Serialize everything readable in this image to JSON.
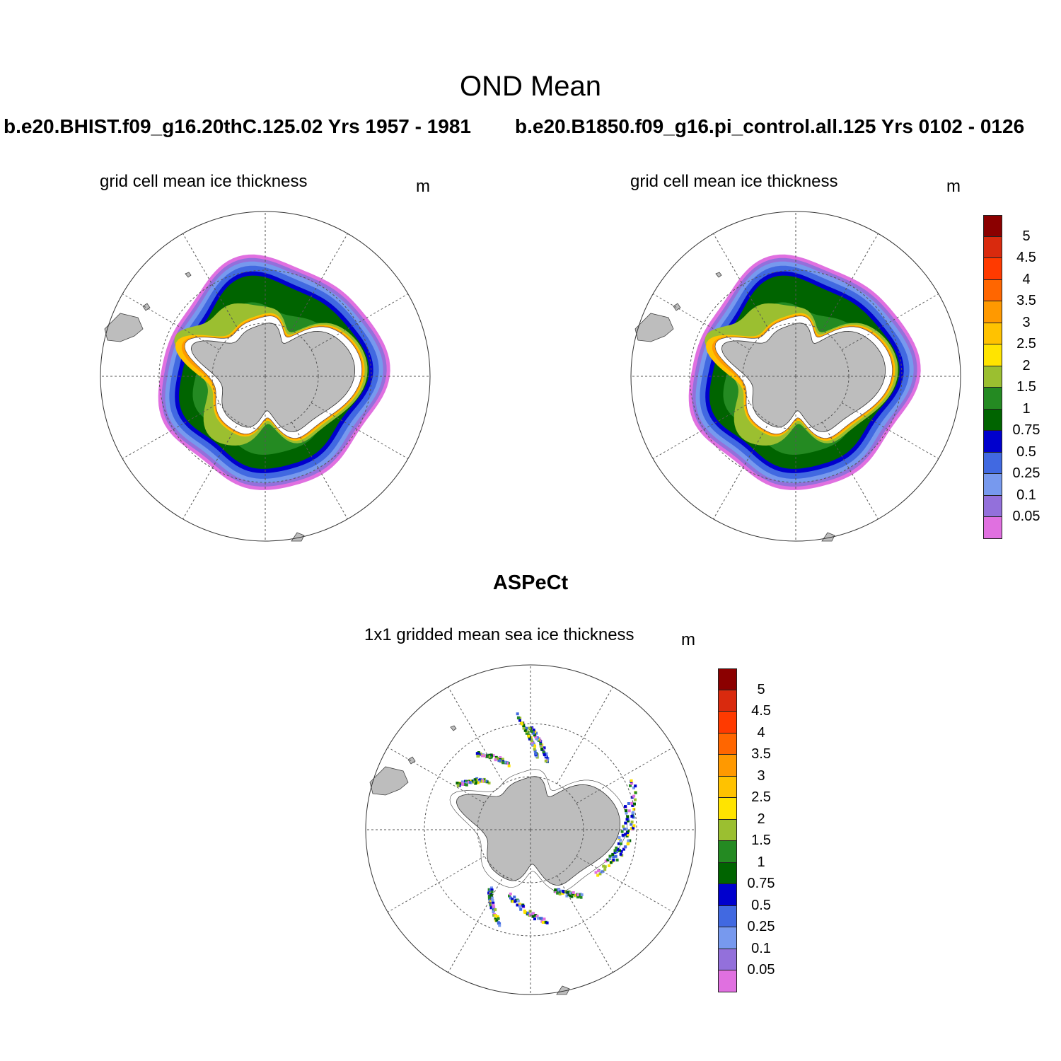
{
  "figure": {
    "title": "OND Mean",
    "observation_title": "ASPeCt"
  },
  "panels": [
    {
      "run": "b.e20.BHIST.f09_g16.20thC.125.02  Yrs 1957 - 1981",
      "subtitle": "grid cell mean ice thickness",
      "units": "m"
    },
    {
      "run": "b.e20.B1850.f09_g16.pi_control.all.125  Yrs 0102 - 0126",
      "subtitle": "grid cell mean ice thickness",
      "units": "m"
    },
    {
      "run": "",
      "subtitle": "1x1 gridded mean sea ice thickness",
      "units": "m"
    }
  ],
  "colorbar": {
    "labels": [
      "5",
      "4.5",
      "4",
      "3.5",
      "3",
      "2.5",
      "2",
      "1.5",
      "1",
      "0.75",
      "0.5",
      "0.25",
      "0.1",
      "0.05"
    ],
    "colors": [
      "#8b0000",
      "#d92a0e",
      "#ff3a00",
      "#ff6600",
      "#ff9900",
      "#ffc200",
      "#ffe400",
      "#9bbf30",
      "#248a22",
      "#006400",
      "#0000cd",
      "#4169e1",
      "#7799ee",
      "#9370db",
      "#e070e0"
    ]
  },
  "colors": {
    "land": "#bdbdbd",
    "ice_shelf": "#ffffff",
    "grid": "#555555"
  }
}
